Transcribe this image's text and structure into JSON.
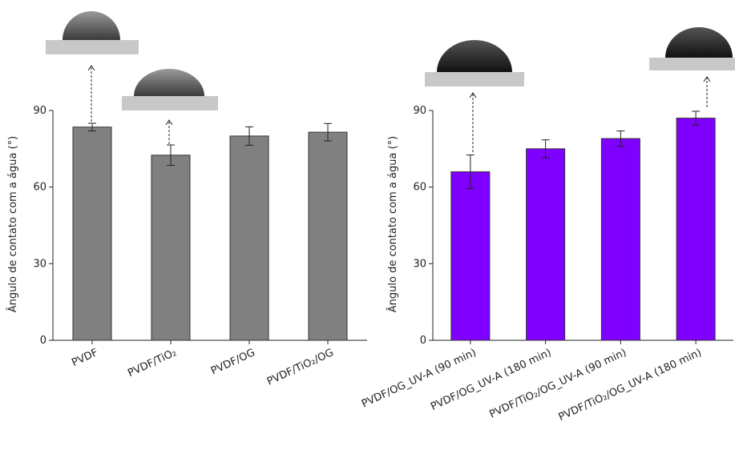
{
  "chart_data": [
    {
      "type": "bar",
      "ylabel": "Ângulo de contato com a água (°)",
      "categories": [
        "PVDF",
        "PVDF/TiO₂",
        "PVDF/OG",
        "PVDF/TiO₂/OG"
      ],
      "values": [
        83.5,
        72.5,
        80,
        81.5
      ],
      "errors": [
        1.5,
        4,
        3.6,
        3.4
      ],
      "color": "#808080",
      "ylim": [
        0,
        90
      ],
      "yticks": [
        0,
        30,
        60,
        90
      ]
    },
    {
      "type": "bar",
      "ylabel": "Ângulo de contato com a água (°)",
      "categories": [
        "PVDF/OG_UV-A (90 min)",
        "PVDF/OG_UV-A (180 min)",
        "PVDF/TiO₂/OG_UV-A (90 min)",
        "PVDF/TiO₂/OG_UV-A (180 min)"
      ],
      "values": [
        66,
        75,
        79,
        87
      ],
      "errors": [
        6.6,
        3.5,
        3,
        2.7
      ],
      "color": "#7f00ff",
      "ylim": [
        0,
        90
      ],
      "yticks": [
        0,
        30,
        60,
        90
      ]
    }
  ]
}
